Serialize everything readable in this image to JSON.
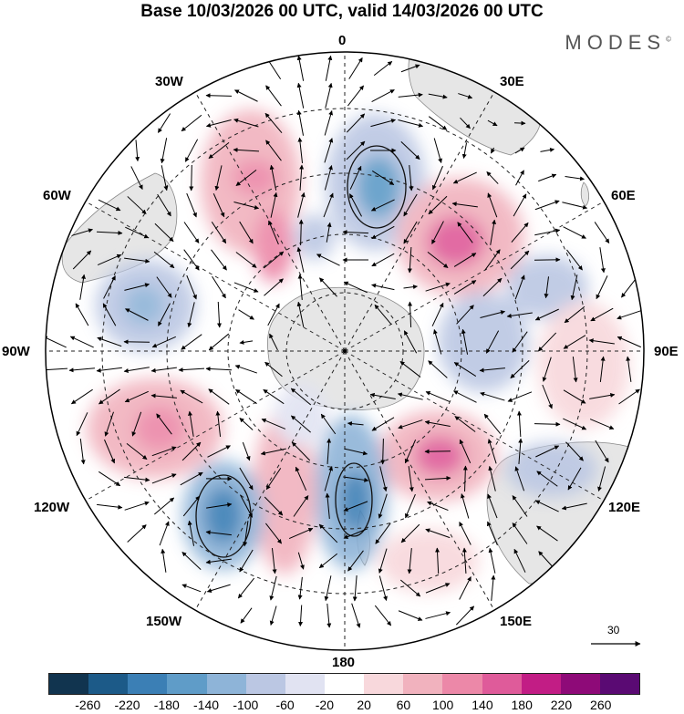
{
  "title": "Base 10/03/2026 00 UTC, valid 14/03/2026 00 UTC",
  "brand": "MODES",
  "brand_mark": "©",
  "longitude_labels": {
    "lon_0": "0",
    "lon_30e": "30E",
    "lon_60e": "60E",
    "lon_90e": "90E",
    "lon_120e": "120E",
    "lon_150e": "150E",
    "lon_180": "180",
    "lon_150w": "150W",
    "lon_120w": "120W",
    "lon_90w": "90W",
    "lon_60w": "60W",
    "lon_30w": "30W"
  },
  "vector_scale": {
    "value": "30"
  },
  "colorbar": {
    "ticks": [
      "-260",
      "-220",
      "-180",
      "-140",
      "-100",
      "-60",
      "-20",
      "20",
      "60",
      "100",
      "140",
      "180",
      "220",
      "260"
    ],
    "colors": [
      "#11344f",
      "#1c5a88",
      "#3b7fb5",
      "#5f9cc8",
      "#8eb4d8",
      "#bbc7e3",
      "#e1e3f2",
      "#ffffff",
      "#f8d8dc",
      "#f1b2be",
      "#ec88a8",
      "#df5b9a",
      "#c21d85",
      "#8e0a78",
      "#5a0a73"
    ]
  },
  "chart_data": {
    "type": "polar-stereographic-map",
    "projection": "south polar stereographic",
    "title": "Base 10/03/2026 00 UTC, valid 14/03/2026 00 UTC",
    "field": "shaded anomaly with wind vectors",
    "color_levels": [
      -260,
      -220,
      -180,
      -140,
      -100,
      -60,
      -20,
      20,
      60,
      100,
      140,
      180,
      220,
      260
    ],
    "anomaly_centers": [
      {
        "lon": 5,
        "sign": "negative",
        "approx_value": -180
      },
      {
        "lon": 35,
        "sign": "positive",
        "approx_value": 180
      },
      {
        "lon": 65,
        "sign": "negative",
        "approx_value": -100
      },
      {
        "lon": 85,
        "sign": "negative",
        "approx_value": -100
      },
      {
        "lon": 92,
        "sign": "positive",
        "approx_value": 100
      },
      {
        "lon": 145,
        "sign": "positive",
        "approx_value": 180
      },
      {
        "lon": 125,
        "sign": "negative",
        "approx_value": -100
      },
      {
        "lon": 175,
        "sign": "negative",
        "approx_value": -180
      },
      {
        "lon": -165,
        "sign": "positive",
        "approx_value": 100
      },
      {
        "lon": -140,
        "sign": "negative",
        "approx_value": -220
      },
      {
        "lon": -110,
        "sign": "positive",
        "approx_value": 180
      },
      {
        "lon": -75,
        "sign": "negative",
        "approx_value": -140
      },
      {
        "lon": -20,
        "sign": "positive",
        "approx_value": 140
      },
      {
        "lon": -10,
        "sign": "positive",
        "approx_value": 100
      }
    ],
    "vector_reference": 30
  }
}
